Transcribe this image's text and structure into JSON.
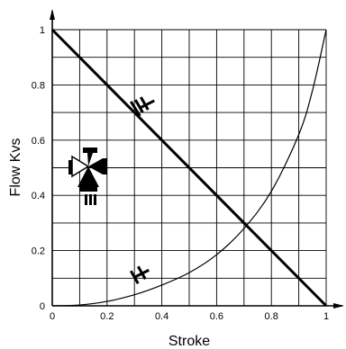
{
  "chart_data": {
    "type": "line",
    "xlabel": "Stroke",
    "ylabel": "Flow Kvs",
    "xlim": [
      0,
      1
    ],
    "ylim": [
      0,
      1
    ],
    "x_ticks": [
      0,
      0.2,
      0.4,
      0.6,
      0.8,
      1
    ],
    "x_tick_labels": [
      "0",
      "0.2",
      "0.4",
      "0.6",
      "0.8",
      "1"
    ],
    "y_ticks": [
      0,
      0.2,
      0.4,
      0.6,
      0.8,
      1
    ],
    "y_tick_labels": [
      "0",
      "0.2",
      "0.4",
      "0.6",
      "0.8",
      "1"
    ],
    "grid": true,
    "grid_step": 0.1,
    "series": [
      {
        "label": "I-II",
        "style": "thick",
        "x": [
          0,
          1
        ],
        "y": [
          1,
          0
        ]
      },
      {
        "label": "I",
        "style": "thin",
        "x": [
          0,
          0.1,
          0.2,
          0.3,
          0.4,
          0.5,
          0.6,
          0.7,
          0.8,
          0.9,
          0.95,
          1
        ],
        "y": [
          0,
          0.003,
          0.016,
          0.04,
          0.075,
          0.12,
          0.185,
          0.28,
          0.415,
          0.62,
          0.78,
          1
        ]
      }
    ],
    "annotations": [
      {
        "text": "I-II",
        "series": "I-II",
        "x": 0.33,
        "y": 0.72
      },
      {
        "text": "I",
        "series": "I",
        "x": 0.32,
        "y": 0.11
      }
    ],
    "icon": "three-way-valve-icon"
  }
}
